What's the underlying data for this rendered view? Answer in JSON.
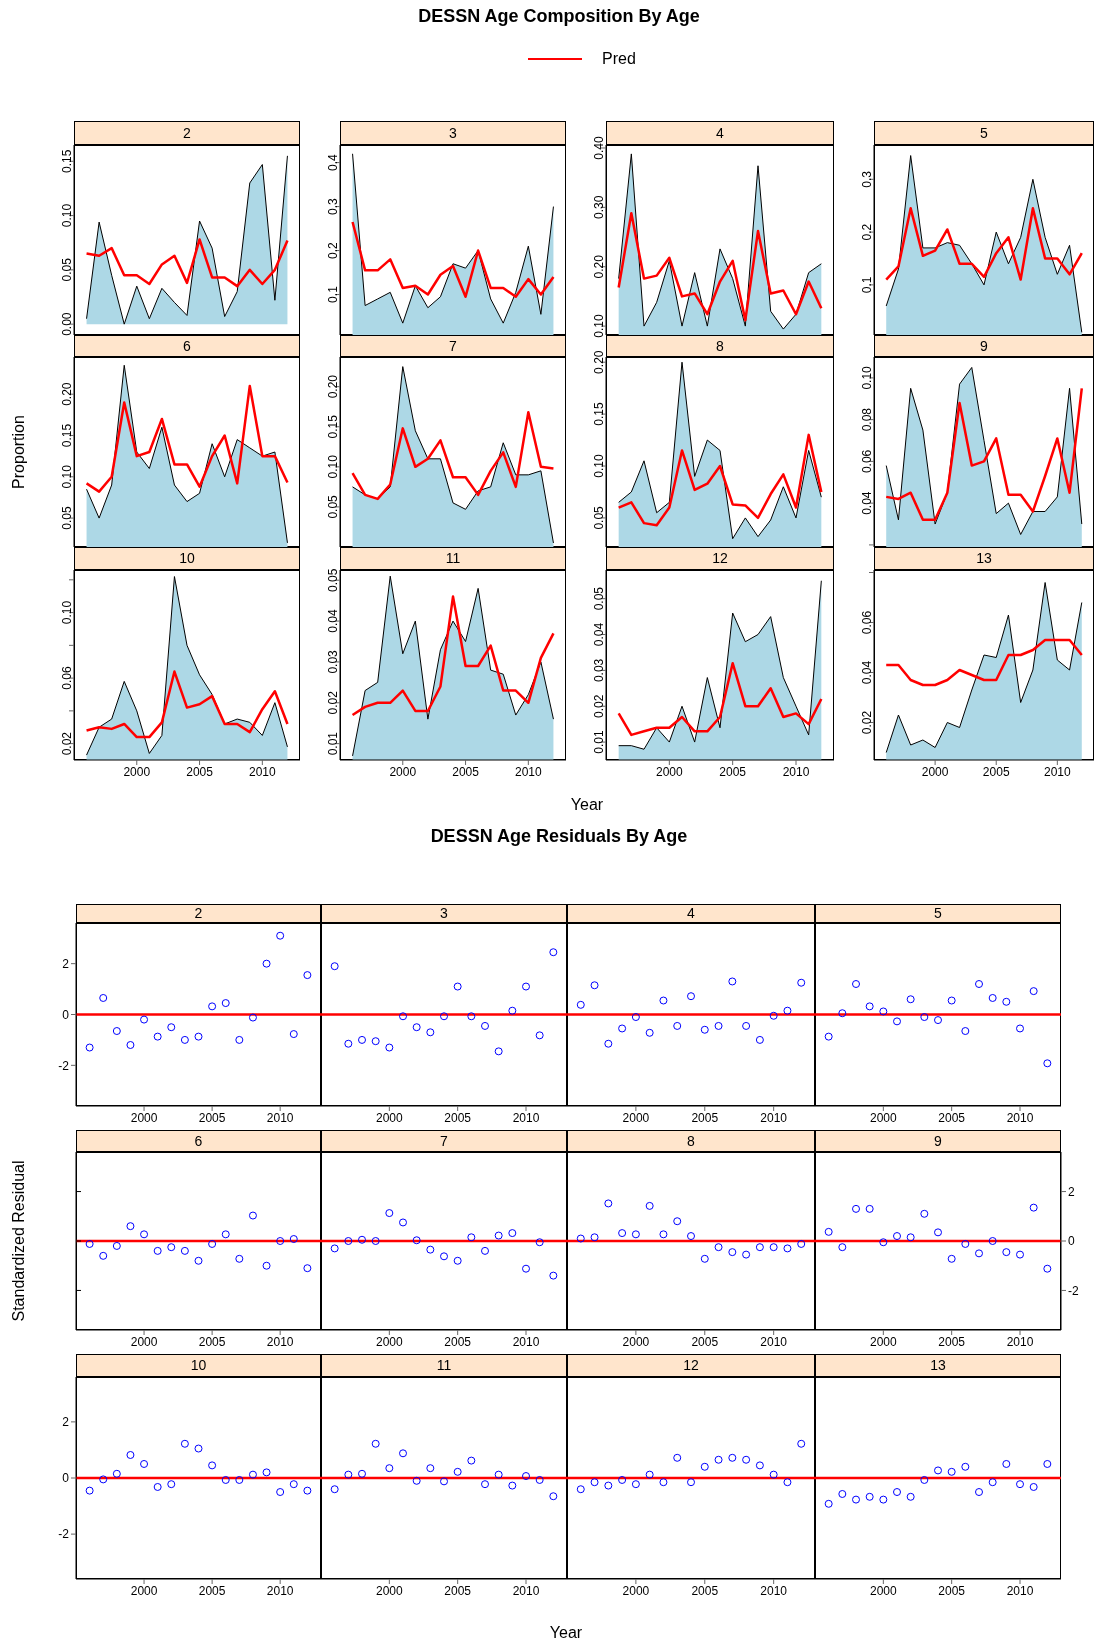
{
  "chart_data": [
    {
      "type": "area",
      "title": "2",
      "annotations": [
        "DESSN Age Composition By Age"
      ],
      "legend": "top",
      "x": [
        1996,
        1997,
        1998,
        1999,
        2000,
        2001,
        2002,
        2003,
        2004,
        2005,
        2006,
        2007,
        2008,
        2009,
        2010,
        2011,
        2012
      ],
      "xlim": [
        1995,
        2013
      ],
      "xticks": [
        2000,
        2005,
        2010
      ],
      "ylim": [
        -0.01,
        0.165
      ],
      "yticks": [
        {
          "value": 0,
          "label": "0.00"
        },
        0.05,
        {
          "value": 0.1,
          "label": "0.10"
        },
        0.15
      ],
      "tick_labels": "y",
      "series": [
        {
          "type": "area",
          "color": "#add8e6",
          "values": [
            0.005,
            0.094,
            0.045,
            0.0,
            0.035,
            0.005,
            0.033,
            0.02,
            0.008,
            0.095,
            0.07,
            0.007,
            0.03,
            0.13,
            0.147,
            0.022,
            0.155
          ]
        },
        {
          "type": "line",
          "name": "Pred",
          "color": "#ff0000",
          "values": [
            0.065,
            0.063,
            0.07,
            0.045,
            0.045,
            0.037,
            0.055,
            0.063,
            0.038,
            0.078,
            0.043,
            0.043,
            0.035,
            0.05,
            0.037,
            0.05,
            0.077
          ]
        }
      ]
    },
    {
      "type": "area",
      "title": "3",
      "x": [
        1996,
        1997,
        1998,
        1999,
        2000,
        2001,
        2002,
        2003,
        2004,
        2005,
        2006,
        2007,
        2008,
        2009,
        2010,
        2011,
        2012
      ],
      "xlim": [
        1995,
        2013
      ],
      "xticks": [
        2000,
        2005,
        2010
      ],
      "ylim": [
        0.008,
        0.44
      ],
      "yticks": [
        0.1,
        0.2,
        0.3,
        0.4
      ],
      "tick_labels": "y",
      "series": [
        {
          "type": "area",
          "color": "#add8e6",
          "values": [
            0.42,
            0.075,
            0.09,
            0.105,
            0.035,
            0.12,
            0.07,
            0.095,
            0.17,
            0.16,
            0.2,
            0.09,
            0.035,
            0.105,
            0.21,
            0.055,
            0.3
          ]
        },
        {
          "type": "line",
          "color": "#ff0000",
          "values": [
            0.265,
            0.155,
            0.155,
            0.18,
            0.115,
            0.12,
            0.1,
            0.145,
            0.165,
            0.095,
            0.2,
            0.115,
            0.115,
            0.095,
            0.135,
            0.1,
            0.14
          ]
        }
      ]
    },
    {
      "type": "area",
      "title": "4",
      "x": [
        1996,
        1997,
        1998,
        1999,
        2000,
        2001,
        2002,
        2003,
        2004,
        2005,
        2006,
        2007,
        2008,
        2009,
        2010,
        2011,
        2012
      ],
      "xlim": [
        1995,
        2013
      ],
      "xticks": [
        2000,
        2005,
        2010
      ],
      "ylim": [
        0.085,
        0.405
      ],
      "yticks": [
        {
          "value": 0.1,
          "label": "0.10"
        },
        {
          "value": 0.2,
          "label": "0.20"
        },
        {
          "value": 0.3,
          "label": "0.30"
        },
        {
          "value": 0.4,
          "label": "0.40"
        }
      ],
      "tick_labels": "y",
      "series": [
        {
          "type": "area",
          "color": "#add8e6",
          "values": [
            0.18,
            0.39,
            0.1,
            0.14,
            0.21,
            0.1,
            0.19,
            0.1,
            0.23,
            0.18,
            0.1,
            0.37,
            0.125,
            0.095,
            0.12,
            0.19,
            0.205
          ]
        },
        {
          "type": "line",
          "color": "#ff0000",
          "values": [
            0.165,
            0.29,
            0.18,
            0.185,
            0.215,
            0.15,
            0.155,
            0.12,
            0.175,
            0.21,
            0.11,
            0.26,
            0.155,
            0.16,
            0.12,
            0.175,
            0.13
          ]
        }
      ]
    },
    {
      "type": "area",
      "title": "5",
      "x": [
        1996,
        1997,
        1998,
        1999,
        2000,
        2001,
        2002,
        2003,
        2004,
        2005,
        2006,
        2007,
        2008,
        2009,
        2010,
        2011,
        2012
      ],
      "xlim": [
        1995,
        2013
      ],
      "xticks": [
        2000,
        2005,
        2010
      ],
      "ylim": [
        0.005,
        0.365
      ],
      "yticks": [
        0.1,
        0.2,
        0.3
      ],
      "tick_labels": "y",
      "series": [
        {
          "type": "area",
          "color": "#add8e6",
          "values": [
            0.06,
            0.13,
            0.345,
            0.17,
            0.17,
            0.18,
            0.175,
            0.14,
            0.1,
            0.2,
            0.14,
            0.19,
            0.3,
            0.19,
            0.12,
            0.175,
            0.01
          ]
        },
        {
          "type": "line",
          "color": "#ff0000",
          "values": [
            0.11,
            0.135,
            0.245,
            0.155,
            0.165,
            0.205,
            0.14,
            0.14,
            0.115,
            0.16,
            0.19,
            0.11,
            0.245,
            0.15,
            0.15,
            0.12,
            0.16
          ]
        }
      ]
    },
    {
      "type": "area",
      "title": "6",
      "ylabel": "Proportion",
      "x": [
        1996,
        1997,
        1998,
        1999,
        2000,
        2001,
        2002,
        2003,
        2004,
        2005,
        2006,
        2007,
        2008,
        2009,
        2010,
        2011,
        2012
      ],
      "xlim": [
        1995,
        2013
      ],
      "xticks": [
        2000,
        2005,
        2010
      ],
      "ylim": [
        0.015,
        0.245
      ],
      "yticks": [
        0.05,
        {
          "value": 0.1,
          "label": "0.10"
        },
        0.15,
        {
          "value": 0.2,
          "label": "0.20"
        }
      ],
      "tick_labels": "y",
      "series": [
        {
          "type": "area",
          "color": "#add8e6",
          "values": [
            0.085,
            0.05,
            0.09,
            0.235,
            0.13,
            0.11,
            0.16,
            0.09,
            0.07,
            0.08,
            0.14,
            0.1,
            0.145,
            0.135,
            0.125,
            0.13,
            0.02
          ]
        },
        {
          "type": "line",
          "color": "#ff0000",
          "values": [
            0.092,
            0.082,
            0.1,
            0.19,
            0.125,
            0.13,
            0.17,
            0.115,
            0.115,
            0.088,
            0.125,
            0.15,
            0.092,
            0.21,
            0.125,
            0.125,
            0.093
          ]
        }
      ]
    },
    {
      "type": "area",
      "title": "7",
      "x": [
        1996,
        1997,
        1998,
        1999,
        2000,
        2001,
        2002,
        2003,
        2004,
        2005,
        2006,
        2007,
        2008,
        2009,
        2010,
        2011,
        2012
      ],
      "xlim": [
        1995,
        2013
      ],
      "xticks": [
        2000,
        2005,
        2010
      ],
      "ylim": [
        0.0,
        0.237
      ],
      "yticks": [
        0.05,
        {
          "value": 0.1,
          "label": "0.10"
        },
        0.15,
        {
          "value": 0.2,
          "label": "0.20"
        }
      ],
      "tick_labels": "y",
      "series": [
        {
          "type": "area",
          "color": "#add8e6",
          "values": [
            0.075,
            0.065,
            0.06,
            0.075,
            0.225,
            0.145,
            0.11,
            0.11,
            0.055,
            0.047,
            0.07,
            0.075,
            0.13,
            0.09,
            0.09,
            0.095,
            0.005
          ]
        },
        {
          "type": "line",
          "color": "#ff0000",
          "values": [
            0.092,
            0.065,
            0.06,
            0.078,
            0.148,
            0.1,
            0.11,
            0.133,
            0.087,
            0.087,
            0.065,
            0.095,
            0.118,
            0.075,
            0.168,
            0.1,
            0.098
          ]
        }
      ]
    },
    {
      "type": "area",
      "title": "8",
      "x": [
        1996,
        1997,
        1998,
        1999,
        2000,
        2001,
        2002,
        2003,
        2004,
        2005,
        2006,
        2007,
        2008,
        2009,
        2010,
        2011,
        2012
      ],
      "xlim": [
        1995,
        2013
      ],
      "xticks": [
        2000,
        2005,
        2010
      ],
      "ylim": [
        0.022,
        0.205
      ],
      "yticks": [
        0.05,
        {
          "value": 0.1,
          "label": "0.10"
        },
        0.15,
        {
          "value": 0.2,
          "label": "0.20"
        }
      ],
      "tick_labels": "y",
      "series": [
        {
          "type": "area",
          "color": "#add8e6",
          "values": [
            0.065,
            0.075,
            0.105,
            0.055,
            0.065,
            0.2,
            0.09,
            0.125,
            0.115,
            0.03,
            0.05,
            0.032,
            0.048,
            0.08,
            0.05,
            0.115,
            0.07
          ]
        },
        {
          "type": "line",
          "color": "#ff0000",
          "values": [
            0.06,
            0.065,
            0.045,
            0.043,
            0.06,
            0.115,
            0.077,
            0.083,
            0.1,
            0.063,
            0.062,
            0.05,
            0.073,
            0.092,
            0.06,
            0.13,
            0.075
          ]
        }
      ]
    },
    {
      "type": "area",
      "title": "9",
      "x": [
        1996,
        1997,
        1998,
        1999,
        2000,
        2001,
        2002,
        2003,
        2004,
        2005,
        2006,
        2007,
        2008,
        2009,
        2010,
        2011,
        2012
      ],
      "xlim": [
        1995,
        2013
      ],
      "xticks": [
        2000,
        2005,
        2010
      ],
      "ylim": [
        0.019,
        0.11
      ],
      "yticks": [
        {
          "value": 0.02,
          "label": null
        },
        0.04,
        0.06,
        0.08,
        {
          "value": 0.1,
          "label": "0.10"
        }
      ],
      "tick_labels": "y",
      "series": [
        {
          "type": "area",
          "color": "#add8e6",
          "values": [
            0.058,
            0.032,
            0.095,
            0.075,
            0.03,
            0.045,
            0.097,
            0.105,
            0.07,
            0.035,
            0.04,
            0.025,
            0.036,
            0.036,
            0.043,
            0.095,
            0.03
          ]
        },
        {
          "type": "line",
          "color": "#ff0000",
          "values": [
            0.043,
            0.042,
            0.045,
            0.032,
            0.032,
            0.045,
            0.088,
            0.058,
            0.06,
            0.071,
            0.044,
            0.044,
            0.036,
            0.053,
            0.071,
            0.045,
            0.095
          ]
        }
      ]
    },
    {
      "type": "area",
      "title": "10",
      "x": [
        1996,
        1997,
        1998,
        1999,
        2000,
        2001,
        2002,
        2003,
        2004,
        2005,
        2006,
        2007,
        2008,
        2009,
        2010,
        2011,
        2012
      ],
      "xlim": [
        1995,
        2013
      ],
      "xticks": [
        2000,
        2005,
        2010
      ],
      "ylim": [
        0.01,
        0.126
      ],
      "yticks": [
        0.02,
        {
          "value": 0.04,
          "label": null
        },
        0.06,
        {
          "value": 0.08,
          "label": null
        },
        {
          "value": 0.1,
          "label": "0.10"
        },
        {
          "value": 0.12,
          "label": null
        }
      ],
      "series": [
        {
          "type": "area",
          "color": "#add8e6",
          "values": [
            0.013,
            0.03,
            0.035,
            0.058,
            0.04,
            0.014,
            0.025,
            0.122,
            0.08,
            0.062,
            0.05,
            0.032,
            0.035,
            0.033,
            0.025,
            0.045,
            0.018
          ]
        },
        {
          "type": "line",
          "color": "#ff0000",
          "values": [
            0.028,
            0.03,
            0.029,
            0.032,
            0.024,
            0.024,
            0.033,
            0.064,
            0.042,
            0.044,
            0.049,
            0.032,
            0.032,
            0.027,
            0.041,
            0.052,
            0.032
          ]
        }
      ]
    },
    {
      "type": "area",
      "title": "11",
      "xlabel": "Year",
      "x": [
        1996,
        1997,
        1998,
        1999,
        2000,
        2001,
        2002,
        2003,
        2004,
        2005,
        2006,
        2007,
        2008,
        2009,
        2010,
        2011,
        2012
      ],
      "xlim": [
        1995,
        2013
      ],
      "xticks": [
        2000,
        2005,
        2010
      ],
      "ylim": [
        0.006,
        0.0525
      ],
      "yticks": [
        0.01,
        0.02,
        0.03,
        0.04,
        0.05
      ],
      "series": [
        {
          "type": "area",
          "color": "#add8e6",
          "values": [
            0.007,
            0.023,
            0.025,
            0.051,
            0.032,
            0.04,
            0.016,
            0.033,
            0.04,
            0.035,
            0.048,
            0.028,
            0.027,
            0.017,
            0.022,
            0.03,
            0.016
          ]
        },
        {
          "type": "line",
          "color": "#ff0000",
          "values": [
            0.017,
            0.019,
            0.02,
            0.02,
            0.023,
            0.018,
            0.018,
            0.024,
            0.046,
            0.029,
            0.029,
            0.034,
            0.023,
            0.023,
            0.02,
            0.031,
            0.037
          ]
        }
      ]
    },
    {
      "type": "area",
      "title": "12",
      "x": [
        1996,
        1997,
        1998,
        1999,
        2000,
        2001,
        2002,
        2003,
        2004,
        2005,
        2006,
        2007,
        2008,
        2009,
        2010,
        2011,
        2012
      ],
      "xlim": [
        1995,
        2013
      ],
      "xticks": [
        2000,
        2005,
        2010
      ],
      "ylim": [
        0.005,
        0.058
      ],
      "yticks": [
        0.01,
        0.02,
        0.03,
        0.04,
        0.05
      ],
      "series": [
        {
          "type": "area",
          "color": "#add8e6",
          "values": [
            0.009,
            0.009,
            0.008,
            0.014,
            0.01,
            0.02,
            0.01,
            0.028,
            0.014,
            0.046,
            0.038,
            0.04,
            0.045,
            0.028,
            0.02,
            0.012,
            0.055
          ]
        },
        {
          "type": "line",
          "color": "#ff0000",
          "values": [
            0.018,
            0.012,
            0.013,
            0.014,
            0.014,
            0.017,
            0.013,
            0.013,
            0.017,
            0.032,
            0.02,
            0.02,
            0.025,
            0.017,
            0.018,
            0.015,
            0.022
          ]
        }
      ]
    },
    {
      "type": "area",
      "title": "13",
      "x": [
        1996,
        1997,
        1998,
        1999,
        2000,
        2001,
        2002,
        2003,
        2004,
        2005,
        2006,
        2007,
        2008,
        2009,
        2010,
        2011,
        2012
      ],
      "xlim": [
        1995,
        2013
      ],
      "xticks": [
        2000,
        2005,
        2010
      ],
      "ylim": [
        0.005,
        0.081
      ],
      "yticks": [
        0.02,
        0.04,
        0.06,
        {
          "value": 0.08,
          "label": null
        }
      ],
      "series": [
        {
          "type": "area",
          "color": "#add8e6",
          "values": [
            0.008,
            0.023,
            0.011,
            0.013,
            0.01,
            0.02,
            0.018,
            0.033,
            0.047,
            0.046,
            0.063,
            0.028,
            0.041,
            0.076,
            0.045,
            0.041,
            0.068
          ]
        },
        {
          "type": "line",
          "color": "#ff0000",
          "values": [
            0.043,
            0.043,
            0.037,
            0.035,
            0.035,
            0.037,
            0.041,
            0.039,
            0.037,
            0.037,
            0.047,
            0.047,
            0.049,
            0.053,
            0.053,
            0.053,
            0.047
          ]
        }
      ]
    },
    {
      "type": "scatter",
      "title": "2",
      "annotations": [
        "DESSN Age Residuals By Age"
      ],
      "marker": "circle",
      "x": [
        1996,
        1997,
        1998,
        1999,
        2000,
        2001,
        2002,
        2003,
        2004,
        2005,
        2006,
        2007,
        2008,
        2009,
        2010,
        2011,
        2012
      ],
      "xlim": [
        1995,
        2013
      ],
      "xticks": [
        2000,
        2005,
        2010
      ],
      "ylim": [
        -3.6,
        3.6
      ],
      "yticks": [
        -2,
        0,
        2
      ],
      "ref_lines": [
        {
          "axis": "y",
          "value": 0,
          "color": "#ff0000"
        }
      ],
      "series": [
        {
          "color": "#0000ff",
          "values": [
            -1.3,
            0.65,
            -0.65,
            -1.2,
            -0.2,
            -0.87,
            -0.5,
            -1.0,
            -0.87,
            0.32,
            0.45,
            -1.0,
            -0.12,
            2.0,
            3.1,
            -0.77,
            1.55
          ]
        }
      ]
    },
    {
      "type": "scatter",
      "title": "3",
      "marker": "circle",
      "x": [
        1996,
        1997,
        1998,
        1999,
        2000,
        2001,
        2002,
        2003,
        2004,
        2005,
        2006,
        2007,
        2008,
        2009,
        2010,
        2011,
        2012
      ],
      "xlim": [
        1995,
        2013
      ],
      "xticks": [
        2000,
        2005,
        2010
      ],
      "ylim": [
        -3.6,
        3.6
      ],
      "yticks": [
        -2,
        0,
        2
      ],
      "tick_labels": "x",
      "ref_lines": [
        {
          "axis": "y",
          "value": 0,
          "color": "#ff0000"
        }
      ],
      "series": [
        {
          "color": "#0000ff",
          "values": [
            1.9,
            -1.15,
            -1.0,
            -1.05,
            -1.3,
            -0.07,
            -0.5,
            -0.7,
            -0.07,
            1.1,
            -0.07,
            -0.45,
            -1.45,
            0.15,
            1.1,
            -0.82,
            2.45
          ]
        }
      ]
    },
    {
      "type": "scatter",
      "title": "4",
      "marker": "circle",
      "x": [
        1996,
        1997,
        1998,
        1999,
        2000,
        2001,
        2002,
        2003,
        2004,
        2005,
        2006,
        2007,
        2008,
        2009,
        2010,
        2011,
        2012
      ],
      "xlim": [
        1995,
        2013
      ],
      "xticks": [
        2000,
        2005,
        2010
      ],
      "ylim": [
        -3.6,
        3.6
      ],
      "yticks": [
        -2,
        0,
        2
      ],
      "tick_labels": "x",
      "ref_lines": [
        {
          "axis": "y",
          "value": 0,
          "color": "#ff0000"
        }
      ],
      "series": [
        {
          "color": "#0000ff",
          "values": [
            0.38,
            1.15,
            -1.15,
            -0.55,
            -0.1,
            -0.72,
            0.55,
            -0.45,
            0.72,
            -0.6,
            -0.45,
            1.3,
            -0.45,
            -1.0,
            -0.05,
            0.15,
            1.25
          ]
        }
      ]
    },
    {
      "type": "scatter",
      "title": "5",
      "marker": "circle",
      "x": [
        1996,
        1997,
        1998,
        1999,
        2000,
        2001,
        2002,
        2003,
        2004,
        2005,
        2006,
        2007,
        2008,
        2009,
        2010,
        2011,
        2012
      ],
      "xlim": [
        1995,
        2013
      ],
      "xticks": [
        2000,
        2005,
        2010
      ],
      "ylim": [
        -3.6,
        3.6
      ],
      "yticks": [
        -2,
        0,
        2
      ],
      "tick_labels": "x",
      "ref_lines": [
        {
          "axis": "y",
          "value": 0,
          "color": "#ff0000"
        }
      ],
      "series": [
        {
          "color": "#0000ff",
          "values": [
            -0.87,
            0.05,
            1.2,
            0.32,
            0.12,
            -0.27,
            0.6,
            -0.1,
            -0.22,
            0.55,
            -0.65,
            1.2,
            0.65,
            0.5,
            -0.55,
            0.92,
            -1.92
          ]
        }
      ]
    },
    {
      "type": "scatter",
      "title": "6",
      "ylabel": "Standardized Residual",
      "marker": "circle",
      "x": [
        1996,
        1997,
        1998,
        1999,
        2000,
        2001,
        2002,
        2003,
        2004,
        2005,
        2006,
        2007,
        2008,
        2009,
        2010,
        2011,
        2012
      ],
      "xlim": [
        1995,
        2013
      ],
      "xticks": [
        2000,
        2005,
        2010
      ],
      "ylim": [
        -3.6,
        3.6
      ],
      "yticks": [
        -2,
        0,
        2
      ],
      "tick_labels": "x",
      "ref_lines": [
        {
          "axis": "y",
          "value": 0,
          "color": "#ff0000"
        }
      ],
      "series": [
        {
          "color": "#0000ff",
          "values": [
            -0.12,
            -0.6,
            -0.2,
            0.6,
            0.27,
            -0.4,
            -0.25,
            -0.4,
            -0.8,
            -0.12,
            0.27,
            -0.72,
            1.03,
            -1.0,
            0.0,
            0.08,
            -1.1
          ]
        }
      ]
    },
    {
      "type": "scatter",
      "title": "7",
      "marker": "circle",
      "x": [
        1996,
        1997,
        1998,
        1999,
        2000,
        2001,
        2002,
        2003,
        2004,
        2005,
        2006,
        2007,
        2008,
        2009,
        2010,
        2011,
        2012
      ],
      "xlim": [
        1995,
        2013
      ],
      "xticks": [
        2000,
        2005,
        2010
      ],
      "ylim": [
        -3.6,
        3.6
      ],
      "yticks": [
        -2,
        0,
        2
      ],
      "tick_labels": "x",
      "ref_lines": [
        {
          "axis": "y",
          "value": 0,
          "color": "#ff0000"
        }
      ],
      "series": [
        {
          "color": "#0000ff",
          "values": [
            -0.3,
            0.0,
            0.05,
            0.0,
            1.13,
            0.75,
            0.03,
            -0.35,
            -0.62,
            -0.8,
            0.15,
            -0.4,
            0.22,
            0.32,
            -1.12,
            -0.05,
            -1.4
          ]
        }
      ]
    },
    {
      "type": "scatter",
      "title": "8",
      "marker": "circle",
      "x": [
        1996,
        1997,
        1998,
        1999,
        2000,
        2001,
        2002,
        2003,
        2004,
        2005,
        2006,
        2007,
        2008,
        2009,
        2010,
        2011,
        2012
      ],
      "xlim": [
        1995,
        2013
      ],
      "xticks": [
        2000,
        2005,
        2010
      ],
      "ylim": [
        -3.6,
        3.6
      ],
      "yticks": [
        -2,
        0,
        2
      ],
      "tick_labels": "x",
      "ref_lines": [
        {
          "axis": "y",
          "value": 0,
          "color": "#ff0000"
        }
      ],
      "series": [
        {
          "color": "#0000ff",
          "values": [
            0.1,
            0.15,
            1.52,
            0.32,
            0.27,
            1.42,
            0.27,
            0.8,
            0.2,
            -0.72,
            -0.25,
            -0.45,
            -0.55,
            -0.25,
            -0.25,
            -0.3,
            -0.12
          ]
        }
      ]
    },
    {
      "type": "scatter",
      "title": "9",
      "marker": "circle",
      "x": [
        1996,
        1997,
        1998,
        1999,
        2000,
        2001,
        2002,
        2003,
        2004,
        2005,
        2006,
        2007,
        2008,
        2009,
        2010,
        2011,
        2012
      ],
      "xlim": [
        1995,
        2013
      ],
      "xticks": [
        2000,
        2005,
        2010
      ],
      "y2lim": [
        -3.6,
        3.6
      ],
      "y2ticks": [
        -2,
        0,
        2
      ],
      "ref_lines": [
        {
          "axis": "y2",
          "value": 0,
          "color": "#ff0000"
        }
      ],
      "series": [
        {
          "axis": "y2",
          "color": "#0000ff",
          "values": [
            0.37,
            -0.25,
            1.3,
            1.3,
            -0.05,
            0.2,
            0.15,
            1.1,
            0.35,
            -0.72,
            -0.12,
            -0.5,
            0.0,
            -0.45,
            -0.55,
            1.35,
            -1.12
          ]
        }
      ]
    },
    {
      "type": "scatter",
      "title": "10",
      "marker": "circle",
      "x": [
        1996,
        1997,
        1998,
        1999,
        2000,
        2001,
        2002,
        2003,
        2004,
        2005,
        2006,
        2007,
        2008,
        2009,
        2010,
        2011,
        2012
      ],
      "xlim": [
        1995,
        2013
      ],
      "xticks": [
        2000,
        2005,
        2010
      ],
      "ylim": [
        -3.6,
        3.6
      ],
      "yticks": [
        -2,
        0,
        2
      ],
      "ref_lines": [
        {
          "axis": "y",
          "value": 0,
          "color": "#ff0000"
        }
      ],
      "series": [
        {
          "color": "#0000ff",
          "values": [
            -0.45,
            -0.05,
            0.15,
            0.82,
            0.5,
            -0.32,
            -0.22,
            1.22,
            1.05,
            0.45,
            -0.07,
            -0.07,
            0.12,
            0.2,
            -0.5,
            -0.22,
            -0.45
          ]
        }
      ]
    },
    {
      "type": "scatter",
      "title": "11",
      "xlabel": "Year",
      "marker": "circle",
      "x": [
        1996,
        1997,
        1998,
        1999,
        2000,
        2001,
        2002,
        2003,
        2004,
        2005,
        2006,
        2007,
        2008,
        2009,
        2010,
        2011,
        2012
      ],
      "xlim": [
        1995,
        2013
      ],
      "xticks": [
        2000,
        2005,
        2010
      ],
      "ylim": [
        -3.6,
        3.6
      ],
      "yticks": [
        -2,
        0,
        2
      ],
      "tick_labels": "x",
      "ref_lines": [
        {
          "axis": "y",
          "value": 0,
          "color": "#ff0000"
        }
      ],
      "series": [
        {
          "color": "#0000ff",
          "values": [
            -0.4,
            0.12,
            0.15,
            1.22,
            0.35,
            0.88,
            -0.1,
            0.35,
            -0.12,
            0.22,
            0.62,
            -0.22,
            0.12,
            -0.27,
            0.07,
            -0.07,
            -0.65
          ]
        }
      ]
    },
    {
      "type": "scatter",
      "title": "12",
      "marker": "circle",
      "x": [
        1996,
        1997,
        1998,
        1999,
        2000,
        2001,
        2002,
        2003,
        2004,
        2005,
        2006,
        2007,
        2008,
        2009,
        2010,
        2011,
        2012
      ],
      "xlim": [
        1995,
        2013
      ],
      "xticks": [
        2000,
        2005,
        2010
      ],
      "ylim": [
        -3.6,
        3.6
      ],
      "yticks": [
        -2,
        0,
        2
      ],
      "tick_labels": "x",
      "ref_lines": [
        {
          "axis": "y",
          "value": 0,
          "color": "#ff0000"
        }
      ],
      "series": [
        {
          "color": "#0000ff",
          "values": [
            -0.4,
            -0.15,
            -0.27,
            -0.07,
            -0.22,
            0.12,
            -0.15,
            0.72,
            -0.15,
            0.4,
            0.65,
            0.72,
            0.65,
            0.45,
            0.12,
            -0.15,
            1.22
          ]
        }
      ]
    },
    {
      "type": "scatter",
      "title": "13",
      "marker": "circle",
      "x": [
        1996,
        1997,
        1998,
        1999,
        2000,
        2001,
        2002,
        2003,
        2004,
        2005,
        2006,
        2007,
        2008,
        2009,
        2010,
        2011,
        2012
      ],
      "xlim": [
        1995,
        2013
      ],
      "xticks": [
        2000,
        2005,
        2010
      ],
      "ylim": [
        -3.6,
        3.6
      ],
      "yticks": [
        -2,
        0,
        2
      ],
      "tick_labels": "x",
      "ref_lines": [
        {
          "axis": "y",
          "value": 0,
          "color": "#ff0000"
        }
      ],
      "series": [
        {
          "color": "#0000ff",
          "values": [
            -0.92,
            -0.57,
            -0.77,
            -0.67,
            -0.77,
            -0.5,
            -0.67,
            -0.07,
            0.27,
            0.22,
            0.4,
            -0.5,
            -0.15,
            0.5,
            -0.22,
            -0.32,
            0.5
          ]
        }
      ]
    }
  ]
}
